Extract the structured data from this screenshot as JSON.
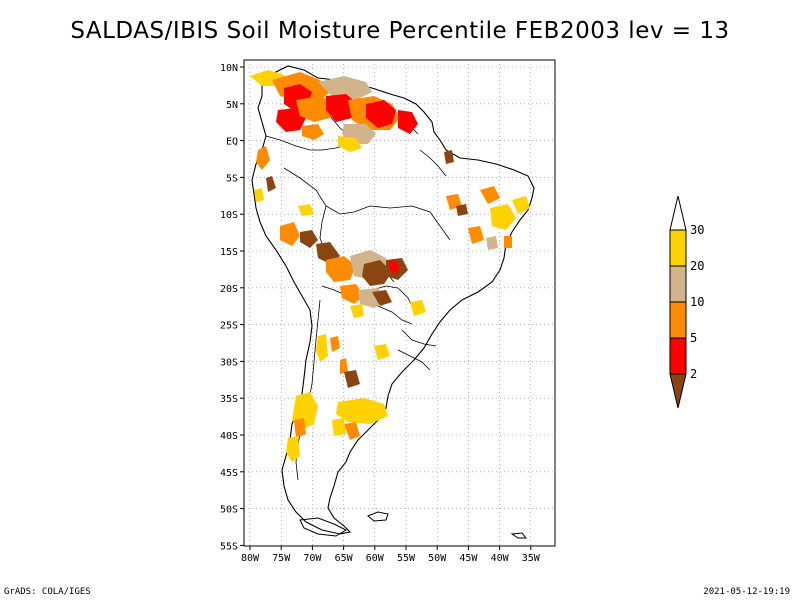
{
  "title": "SALDAS/IBIS Soil Moisture Percentile FEB2003 lev = 13",
  "lat_labels": [
    "10N",
    "5N",
    "EQ",
    "5S",
    "10S",
    "15S",
    "20S",
    "25S",
    "30S",
    "35S",
    "40S",
    "45S",
    "50S",
    "55S"
  ],
  "lon_labels": [
    "80W",
    "75W",
    "70W",
    "65W",
    "60W",
    "55W",
    "50W",
    "45W",
    "40W",
    "35W"
  ],
  "colorbar": {
    "labels": [
      "30",
      "20",
      "10",
      "5",
      "2"
    ],
    "colors": [
      "#ffffff",
      "#ffd200",
      "#d2b48c",
      "#ff8c00",
      "#ff0000",
      "#8b4513"
    ],
    "bins": [
      "> 30",
      "20 - 30",
      "10 - 20",
      "5 - 10",
      "2 - 5",
      "< 2"
    ]
  },
  "colors": {
    "gold": "#ffd200",
    "tan": "#d2b48c",
    "orange": "#ff8c00",
    "red": "#ff0000",
    "brown": "#8b4513"
  },
  "footer": {
    "left": "GrADS: COLA/IGES",
    "right": "2021-05-12-19:19"
  }
}
